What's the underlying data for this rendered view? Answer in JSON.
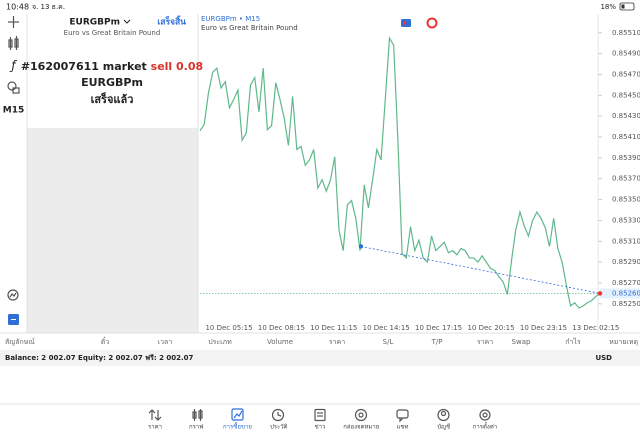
{
  "status_bar": {
    "time": "10:48",
    "date": "จ. 13 ธ.ค.",
    "battery": "18%"
  },
  "toolbar": {
    "timeframe": "M15"
  },
  "order_panel": {
    "symbol": "EURGBPm",
    "done_button": "เสร็จสิ้น",
    "description": "Euro vs Great Britain Pound",
    "order": "#162007611 market",
    "side": "sell 0.08",
    "order_symbol": "EURGBPm",
    "status": "เสร็จแล้ว"
  },
  "chart_data": {
    "type": "line",
    "title": "EURGBPm • M15",
    "subtitle": "Euro vs Great Britain Pound",
    "color": "#5fb88a",
    "x_tick_labels": [
      "10 Dec 05:15",
      "10 Dec 08:15",
      "10 Dec 11:15",
      "10 Dec 14:15",
      "10 Dec 17:15",
      "10 Dec 20:15",
      "10 Dec 23:15",
      "13 Dec 02:15"
    ],
    "values": [
      0.85416,
      0.85422,
      0.85452,
      0.85472,
      0.85476,
      0.85457,
      0.85463,
      0.85438,
      0.85446,
      0.85455,
      0.85407,
      0.85414,
      0.8546,
      0.85467,
      0.85434,
      0.85476,
      0.85417,
      0.85421,
      0.85462,
      0.85446,
      0.85428,
      0.85402,
      0.85449,
      0.85398,
      0.85401,
      0.85383,
      0.85388,
      0.85398,
      0.85361,
      0.85369,
      0.85358,
      0.85369,
      0.85391,
      0.85321,
      0.85301,
      0.85345,
      0.85349,
      0.85332,
      0.85301,
      0.85364,
      0.85342,
      0.85369,
      0.85398,
      0.85388,
      0.85446,
      0.85505,
      0.85498,
      0.85407,
      0.85298,
      0.85294,
      0.85324,
      0.85301,
      0.85311,
      0.85294,
      0.8529,
      0.85315,
      0.85301,
      0.85305,
      0.85309,
      0.85299,
      0.85301,
      0.85297,
      0.85303,
      0.85301,
      0.85294,
      0.85294,
      0.8529,
      0.85296,
      0.8529,
      0.85284,
      0.85282,
      0.85276,
      0.85271,
      0.85259,
      0.85292,
      0.85321,
      0.85338,
      0.85325,
      0.85315,
      0.8533,
      0.85338,
      0.85332,
      0.85323,
      0.85305,
      0.85332,
      0.85303,
      0.8529,
      0.85268,
      0.85248,
      0.85251,
      0.85246,
      0.85248,
      0.85251,
      0.85253,
      0.85257,
      0.8526
    ],
    "ylim": [
      0.85222,
      0.85528
    ],
    "yticks": [
      {
        "value": 0.8551,
        "label": "0.85510"
      },
      {
        "value": 0.8549,
        "label": "0.85490"
      },
      {
        "value": 0.8547,
        "label": "0.85470"
      },
      {
        "value": 0.8545,
        "label": "0.85450"
      },
      {
        "value": 0.8543,
        "label": "0.85430"
      },
      {
        "value": 0.8541,
        "label": "0.85410"
      },
      {
        "value": 0.8539,
        "label": "0.85390"
      },
      {
        "value": 0.8537,
        "label": "0.85370"
      },
      {
        "value": 0.8535,
        "label": "0.85350"
      },
      {
        "value": 0.8533,
        "label": "0.85330"
      },
      {
        "value": 0.8531,
        "label": "0.85310"
      },
      {
        "value": 0.8529,
        "label": "0.85290"
      },
      {
        "value": 0.8527,
        "label": "0.85270"
      },
      {
        "value": 0.8525,
        "label": "0.85250"
      }
    ],
    "last_price": {
      "value": 0.8526,
      "label": "0.85260"
    },
    "trade": {
      "open_price": 0.85305,
      "close_price": 0.8526
    }
  },
  "positions_table": {
    "columns": [
      "สัญลักษณ์",
      "ตั๋ว",
      "เวลา",
      "ประเภท",
      "Volume",
      "ราคา",
      "S/L",
      "T/P",
      "ราคา",
      "Swap",
      "กำไร",
      "หมายเหตุ"
    ]
  },
  "account": {
    "summary": "Balance: 2 002.07 Equity: 2 002.07 ฟรี: 2 002.07",
    "currency": "USD"
  },
  "tab_bar": {
    "items": [
      "ราคา",
      "กราฟ",
      "การซื้อขาย",
      "ประวัติ",
      "ข่าว",
      "กล่องจดหมาย",
      "แชท",
      "บัญชี",
      "การตั้งค่า"
    ],
    "active": 2
  }
}
